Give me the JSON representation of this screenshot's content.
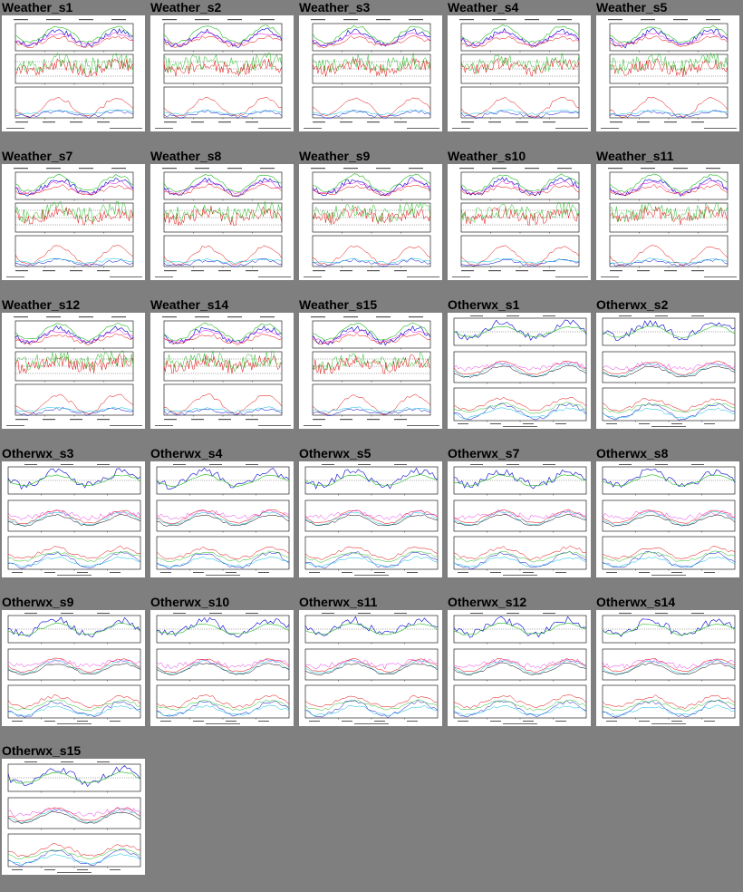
{
  "thumbnails": [
    {
      "label": "Weather_s1",
      "kind": "weather"
    },
    {
      "label": "Weather_s2",
      "kind": "weather"
    },
    {
      "label": "Weather_s3",
      "kind": "weather"
    },
    {
      "label": "Weather_s4",
      "kind": "weather"
    },
    {
      "label": "Weather_s5",
      "kind": "weather"
    },
    {
      "label": "Weather_s7",
      "kind": "weather"
    },
    {
      "label": "Weather_s8",
      "kind": "weather"
    },
    {
      "label": "Weather_s9",
      "kind": "weather"
    },
    {
      "label": "Weather_s10",
      "kind": "weather"
    },
    {
      "label": "Weather_s11",
      "kind": "weather"
    },
    {
      "label": "Weather_s12",
      "kind": "weather"
    },
    {
      "label": "Weather_s14",
      "kind": "weather"
    },
    {
      "label": "Weather_s15",
      "kind": "weather"
    },
    {
      "label": "Otherwx_s1",
      "kind": "otherwx"
    },
    {
      "label": "Otherwx_s2",
      "kind": "otherwx"
    },
    {
      "label": "Otherwx_s3",
      "kind": "otherwx"
    },
    {
      "label": "Otherwx_s4",
      "kind": "otherwx"
    },
    {
      "label": "Otherwx_s5",
      "kind": "otherwx"
    },
    {
      "label": "Otherwx_s7",
      "kind": "otherwx"
    },
    {
      "label": "Otherwx_s8",
      "kind": "otherwx"
    },
    {
      "label": "Otherwx_s9",
      "kind": "otherwx"
    },
    {
      "label": "Otherwx_s10",
      "kind": "otherwx"
    },
    {
      "label": "Otherwx_s11",
      "kind": "otherwx"
    },
    {
      "label": "Otherwx_s12",
      "kind": "otherwx"
    },
    {
      "label": "Otherwx_s14",
      "kind": "otherwx"
    },
    {
      "label": "Otherwx_s15",
      "kind": "otherwx"
    }
  ],
  "colors": {
    "page_background": "#7f7f7f",
    "plot_background": "#ffffff",
    "series_red": "#e00000",
    "series_green": "#22bb22",
    "series_blue": "#0000cc",
    "series_cyan": "#00bbdd",
    "series_magenta": "#dd00dd",
    "series_black": "#000000"
  }
}
